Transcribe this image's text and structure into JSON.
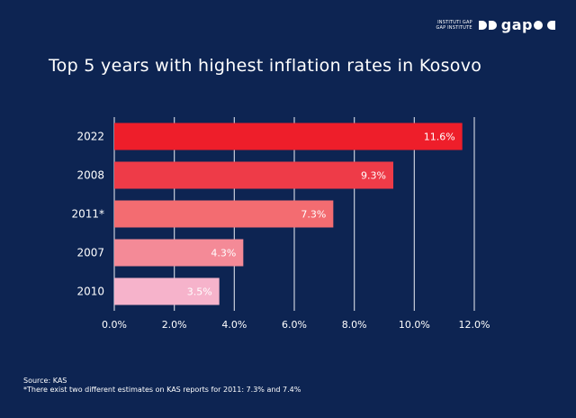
{
  "logo": {
    "line1": "INSTITUTI GAP",
    "line2": "GAP INSTITUTE",
    "word": "gap"
  },
  "chart_data": {
    "type": "bar",
    "orientation": "horizontal",
    "title": "Top 5 years with highest inflation rates in Kosovo",
    "categories": [
      "2022",
      "2008",
      "2011*",
      "2007",
      "2010"
    ],
    "values": [
      11.6,
      9.3,
      7.3,
      4.3,
      3.5
    ],
    "value_labels": [
      "11.6%",
      "9.3%",
      "7.3%",
      "4.3%",
      "3.5%"
    ],
    "bar_colors": [
      "#ee1e2a",
      "#ee3b48",
      "#f36c71",
      "#f48a97",
      "#f6b3cb"
    ],
    "xlim": [
      0,
      12
    ],
    "x_ticks": [
      "0.0%",
      "2.0%",
      "4.0%",
      "6.0%",
      "8.0%",
      "10.0%",
      "12.0%"
    ],
    "x_tick_values": [
      0,
      2,
      4,
      6,
      8,
      10,
      12
    ],
    "grid": true,
    "xlabel": "",
    "ylabel": ""
  },
  "footer": {
    "source": "Source: KAS",
    "note": "*There exist two different estimates on KAS reports for 2011: 7.3% and 7.4%"
  },
  "colors": {
    "background": "#0d2452",
    "grid": "#c8cedb",
    "text": "#ffffff"
  }
}
